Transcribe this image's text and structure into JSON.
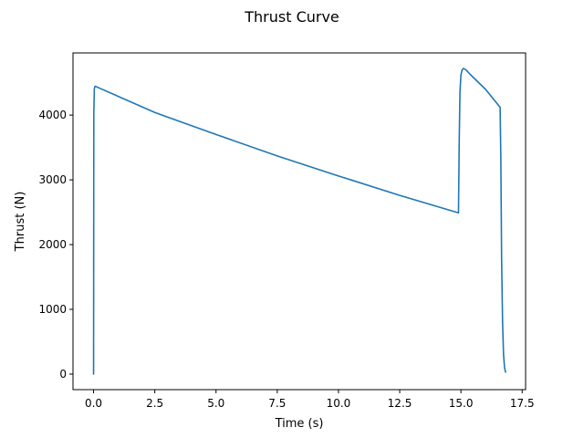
{
  "chart_data": {
    "type": "line",
    "title": "Thrust Curve",
    "xlabel": "Time (s)",
    "ylabel": "Thrust (N)",
    "xlim": [
      -0.84,
      17.64
    ],
    "ylim": [
      -240,
      4960
    ],
    "xticks": [
      0.0,
      2.5,
      5.0,
      7.5,
      10.0,
      12.5,
      15.0,
      17.5
    ],
    "xtick_labels": [
      "0.0",
      "2.5",
      "5.0",
      "7.5",
      "10.0",
      "12.5",
      "15.0",
      "17.5"
    ],
    "yticks": [
      0,
      1000,
      2000,
      3000,
      4000
    ],
    "ytick_labels": [
      "0",
      "1000",
      "2000",
      "3000",
      "4000"
    ],
    "grid": false,
    "series": [
      {
        "color": "#1f77b4",
        "x": [
          0.0,
          0.01,
          0.03,
          0.05,
          0.07,
          2.5,
          5.0,
          7.5,
          10.0,
          12.5,
          14.9,
          14.93,
          14.96,
          15.0,
          15.05,
          15.1,
          15.2,
          15.4,
          16.0,
          16.6,
          16.63,
          16.66,
          16.7,
          16.74,
          16.78,
          16.82
        ],
        "y": [
          0,
          4000,
          4400,
          4440,
          4445,
          4040,
          3700,
          3370,
          3060,
          2760,
          2490,
          3600,
          4350,
          4620,
          4700,
          4720,
          4700,
          4620,
          4400,
          4120,
          3300,
          1800,
          800,
          300,
          100,
          30
        ]
      }
    ]
  }
}
